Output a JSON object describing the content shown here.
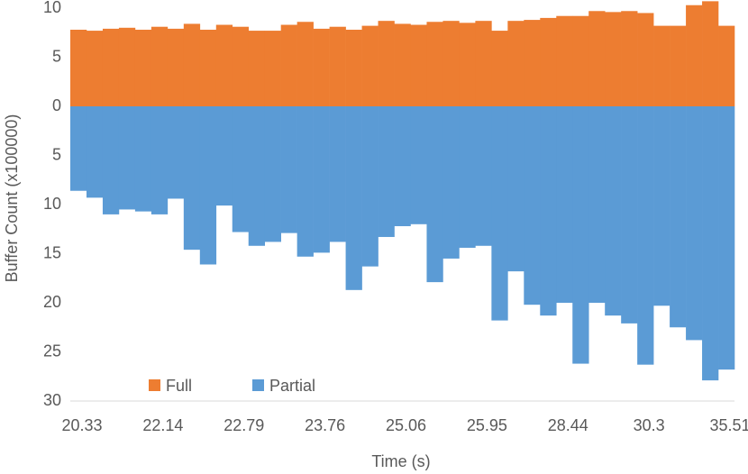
{
  "chart_data": {
    "type": "bar",
    "stacked": true,
    "xlabel": "Time (s)",
    "ylabel": "Buffer Count (x100000)",
    "categories": [
      "20.33",
      null,
      null,
      null,
      null,
      "22.14",
      null,
      null,
      null,
      null,
      "22.79",
      null,
      null,
      null,
      null,
      "23.76",
      null,
      null,
      null,
      null,
      "25.06",
      null,
      null,
      null,
      null,
      "25.95",
      null,
      null,
      null,
      null,
      "28.44",
      null,
      null,
      null,
      null,
      "30.3",
      null,
      null,
      null,
      null,
      "35.51"
    ],
    "series": [
      {
        "name": "Full",
        "color": "#ED7D31",
        "values": [
          7.8,
          7.7,
          7.9,
          8.0,
          7.8,
          8.1,
          7.9,
          8.4,
          7.8,
          8.3,
          8.1,
          7.7,
          7.7,
          8.3,
          8.6,
          7.9,
          8.1,
          7.8,
          8.2,
          8.7,
          8.4,
          8.3,
          8.6,
          8.7,
          8.5,
          8.7,
          7.7,
          8.7,
          8.8,
          9.0,
          9.2,
          9.2,
          9.7,
          9.6,
          9.7,
          9.5,
          8.2,
          8.2,
          10.3,
          10.7,
          8.2
        ]
      },
      {
        "name": "Partial",
        "color": "#5B9BD5",
        "values": [
          -8.6,
          -9.3,
          -11.0,
          -10.5,
          -10.7,
          -11.0,
          -9.4,
          -14.6,
          -16.1,
          -10.1,
          -12.8,
          -14.2,
          -13.8,
          -12.9,
          -15.3,
          -14.9,
          -13.8,
          -18.7,
          -16.3,
          -13.3,
          -12.2,
          -12.0,
          -17.9,
          -15.5,
          -14.4,
          -14.2,
          -21.8,
          -16.8,
          -20.2,
          -21.3,
          -20.0,
          -26.2,
          -20.0,
          -21.3,
          -22.1,
          -26.3,
          -20.3,
          -22.5,
          -23.8,
          -27.9,
          -26.8
        ]
      }
    ],
    "ylim": [
      -30,
      10
    ],
    "yticks": [
      10,
      5,
      0,
      {
        "value": -5,
        "label": "5"
      },
      {
        "value": -10,
        "label": "10"
      },
      {
        "value": -15,
        "label": "15"
      },
      {
        "value": -20,
        "label": "20"
      },
      {
        "value": -25,
        "label": "25"
      },
      {
        "value": -30,
        "label": "30"
      }
    ],
    "grid": false,
    "legend": "lower left"
  }
}
